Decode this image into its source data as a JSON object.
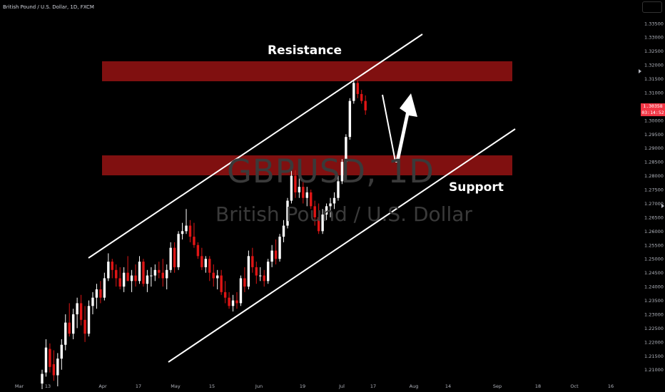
{
  "symbol_label": "British Pound / U.S. Dollar, 1D, FXCM",
  "watermark": {
    "ticker": "GBPUSD, 1D",
    "name": "British Pound / U.S. Dollar"
  },
  "annotations": {
    "resistance": "Resistance",
    "support": "Support"
  },
  "last_price": {
    "price": "1.30358",
    "countdown": "03:14:52"
  },
  "colors": {
    "bull": "#ffffff",
    "bear": "#e01515",
    "zone": "#8b1111",
    "price_tag": "#f23645",
    "axis_text": "#b2b5be"
  },
  "chart_data": {
    "type": "candlestick",
    "title": "",
    "ylim": [
      1.2035,
      1.3415
    ],
    "grid": false,
    "y_ticks": [
      "1.33500",
      "1.33000",
      "1.32500",
      "1.32000",
      "1.31500",
      "1.31000",
      "1.30500",
      "1.30000",
      "1.29500",
      "1.29000",
      "1.28500",
      "1.28000",
      "1.27500",
      "1.27000",
      "1.26500",
      "1.26000",
      "1.25500",
      "1.25000",
      "1.24500",
      "1.24000",
      "1.23500",
      "1.23000",
      "1.22500",
      "1.22000",
      "1.21500",
      "1.21000"
    ],
    "x_ticks": [
      "Mar",
      "13",
      "Apr",
      "17",
      "May",
      "15",
      "Jun",
      "19",
      "Jul",
      "17",
      "Aug",
      "14",
      "Sep",
      "18",
      "Oct",
      "16"
    ],
    "candles": [
      {
        "o": 1.205,
        "h": 1.21,
        "l": 1.203,
        "c": 1.2085
      },
      {
        "o": 1.209,
        "h": 1.221,
        "l": 1.2075,
        "c": 1.218
      },
      {
        "o": 1.2175,
        "h": 1.2195,
        "l": 1.209,
        "c": 1.211
      },
      {
        "o": 1.212,
        "h": 1.217,
        "l": 1.206,
        "c": 1.208
      },
      {
        "o": 1.208,
        "h": 1.216,
        "l": 1.204,
        "c": 1.214
      },
      {
        "o": 1.214,
        "h": 1.221,
        "l": 1.21,
        "c": 1.219
      },
      {
        "o": 1.219,
        "h": 1.23,
        "l": 1.217,
        "c": 1.227
      },
      {
        "o": 1.227,
        "h": 1.234,
        "l": 1.222,
        "c": 1.223
      },
      {
        "o": 1.223,
        "h": 1.232,
        "l": 1.221,
        "c": 1.23
      },
      {
        "o": 1.23,
        "h": 1.236,
        "l": 1.225,
        "c": 1.234
      },
      {
        "o": 1.234,
        "h": 1.237,
        "l": 1.226,
        "c": 1.228
      },
      {
        "o": 1.228,
        "h": 1.233,
        "l": 1.22,
        "c": 1.223
      },
      {
        "o": 1.223,
        "h": 1.235,
        "l": 1.222,
        "c": 1.233
      },
      {
        "o": 1.233,
        "h": 1.238,
        "l": 1.23,
        "c": 1.236
      },
      {
        "o": 1.236,
        "h": 1.241,
        "l": 1.232,
        "c": 1.239
      },
      {
        "o": 1.239,
        "h": 1.242,
        "l": 1.234,
        "c": 1.236
      },
      {
        "o": 1.236,
        "h": 1.245,
        "l": 1.235,
        "c": 1.243
      },
      {
        "o": 1.243,
        "h": 1.252,
        "l": 1.242,
        "c": 1.249
      },
      {
        "o": 1.249,
        "h": 1.25,
        "l": 1.243,
        "c": 1.246
      },
      {
        "o": 1.246,
        "h": 1.248,
        "l": 1.24,
        "c": 1.243
      },
      {
        "o": 1.243,
        "h": 1.247,
        "l": 1.239,
        "c": 1.24
      },
      {
        "o": 1.24,
        "h": 1.247,
        "l": 1.238,
        "c": 1.245
      },
      {
        "o": 1.245,
        "h": 1.251,
        "l": 1.242,
        "c": 1.242
      },
      {
        "o": 1.242,
        "h": 1.246,
        "l": 1.238,
        "c": 1.244
      },
      {
        "o": 1.244,
        "h": 1.248,
        "l": 1.24,
        "c": 1.242
      },
      {
        "o": 1.242,
        "h": 1.251,
        "l": 1.241,
        "c": 1.249
      },
      {
        "o": 1.249,
        "h": 1.25,
        "l": 1.24,
        "c": 1.241
      },
      {
        "o": 1.241,
        "h": 1.246,
        "l": 1.238,
        "c": 1.244
      },
      {
        "o": 1.244,
        "h": 1.247,
        "l": 1.24,
        "c": 1.244
      },
      {
        "o": 1.244,
        "h": 1.248,
        "l": 1.242,
        "c": 1.246
      },
      {
        "o": 1.246,
        "h": 1.249,
        "l": 1.243,
        "c": 1.245
      },
      {
        "o": 1.245,
        "h": 1.25,
        "l": 1.24,
        "c": 1.243
      },
      {
        "o": 1.243,
        "h": 1.248,
        "l": 1.239,
        "c": 1.246
      },
      {
        "o": 1.246,
        "h": 1.256,
        "l": 1.245,
        "c": 1.254
      },
      {
        "o": 1.254,
        "h": 1.256,
        "l": 1.245,
        "c": 1.247
      },
      {
        "o": 1.247,
        "h": 1.26,
        "l": 1.246,
        "c": 1.259
      },
      {
        "o": 1.259,
        "h": 1.263,
        "l": 1.257,
        "c": 1.26
      },
      {
        "o": 1.26,
        "h": 1.268,
        "l": 1.259,
        "c": 1.262
      },
      {
        "o": 1.262,
        "h": 1.264,
        "l": 1.256,
        "c": 1.258
      },
      {
        "o": 1.258,
        "h": 1.263,
        "l": 1.254,
        "c": 1.255
      },
      {
        "o": 1.255,
        "h": 1.256,
        "l": 1.25,
        "c": 1.251
      },
      {
        "o": 1.251,
        "h": 1.254,
        "l": 1.246,
        "c": 1.247
      },
      {
        "o": 1.247,
        "h": 1.251,
        "l": 1.245,
        "c": 1.25
      },
      {
        "o": 1.25,
        "h": 1.251,
        "l": 1.242,
        "c": 1.245
      },
      {
        "o": 1.245,
        "h": 1.248,
        "l": 1.24,
        "c": 1.243
      },
      {
        "o": 1.243,
        "h": 1.246,
        "l": 1.239,
        "c": 1.244
      },
      {
        "o": 1.244,
        "h": 1.246,
        "l": 1.237,
        "c": 1.238
      },
      {
        "o": 1.238,
        "h": 1.242,
        "l": 1.234,
        "c": 1.236
      },
      {
        "o": 1.236,
        "h": 1.238,
        "l": 1.232,
        "c": 1.233
      },
      {
        "o": 1.233,
        "h": 1.237,
        "l": 1.231,
        "c": 1.235
      },
      {
        "o": 1.235,
        "h": 1.238,
        "l": 1.232,
        "c": 1.234
      },
      {
        "o": 1.234,
        "h": 1.244,
        "l": 1.233,
        "c": 1.243
      },
      {
        "o": 1.243,
        "h": 1.247,
        "l": 1.238,
        "c": 1.24
      },
      {
        "o": 1.24,
        "h": 1.253,
        "l": 1.239,
        "c": 1.251
      },
      {
        "o": 1.251,
        "h": 1.254,
        "l": 1.245,
        "c": 1.247
      },
      {
        "o": 1.247,
        "h": 1.249,
        "l": 1.241,
        "c": 1.244
      },
      {
        "o": 1.244,
        "h": 1.247,
        "l": 1.242,
        "c": 1.244
      },
      {
        "o": 1.244,
        "h": 1.246,
        "l": 1.24,
        "c": 1.242
      },
      {
        "o": 1.242,
        "h": 1.25,
        "l": 1.241,
        "c": 1.249
      },
      {
        "o": 1.249,
        "h": 1.255,
        "l": 1.247,
        "c": 1.253
      },
      {
        "o": 1.253,
        "h": 1.257,
        "l": 1.248,
        "c": 1.25
      },
      {
        "o": 1.25,
        "h": 1.259,
        "l": 1.249,
        "c": 1.258
      },
      {
        "o": 1.258,
        "h": 1.264,
        "l": 1.256,
        "c": 1.262
      },
      {
        "o": 1.262,
        "h": 1.272,
        "l": 1.261,
        "c": 1.271
      },
      {
        "o": 1.271,
        "h": 1.282,
        "l": 1.27,
        "c": 1.28
      },
      {
        "o": 1.28,
        "h": 1.282,
        "l": 1.272,
        "c": 1.274
      },
      {
        "o": 1.274,
        "h": 1.28,
        "l": 1.272,
        "c": 1.276
      },
      {
        "o": 1.276,
        "h": 1.278,
        "l": 1.27,
        "c": 1.272
      },
      {
        "o": 1.272,
        "h": 1.276,
        "l": 1.269,
        "c": 1.274
      },
      {
        "o": 1.274,
        "h": 1.275,
        "l": 1.268,
        "c": 1.269
      },
      {
        "o": 1.269,
        "h": 1.271,
        "l": 1.262,
        "c": 1.265
      },
      {
        "o": 1.265,
        "h": 1.27,
        "l": 1.259,
        "c": 1.26
      },
      {
        "o": 1.26,
        "h": 1.268,
        "l": 1.259,
        "c": 1.266
      },
      {
        "o": 1.266,
        "h": 1.27,
        "l": 1.264,
        "c": 1.269
      },
      {
        "o": 1.269,
        "h": 1.272,
        "l": 1.265,
        "c": 1.27
      },
      {
        "o": 1.27,
        "h": 1.274,
        "l": 1.268,
        "c": 1.272
      },
      {
        "o": 1.272,
        "h": 1.28,
        "l": 1.271,
        "c": 1.278
      },
      {
        "o": 1.278,
        "h": 1.286,
        "l": 1.277,
        "c": 1.285
      },
      {
        "o": 1.285,
        "h": 1.295,
        "l": 1.284,
        "c": 1.294
      },
      {
        "o": 1.294,
        "h": 1.308,
        "l": 1.293,
        "c": 1.307
      },
      {
        "o": 1.307,
        "h": 1.3145,
        "l": 1.306,
        "c": 1.3135
      },
      {
        "o": 1.3135,
        "h": 1.3145,
        "l": 1.308,
        "c": 1.3095
      },
      {
        "o": 1.3095,
        "h": 1.311,
        "l": 1.306,
        "c": 1.307
      },
      {
        "o": 1.307,
        "h": 1.309,
        "l": 1.302,
        "c": 1.3036
      }
    ]
  }
}
